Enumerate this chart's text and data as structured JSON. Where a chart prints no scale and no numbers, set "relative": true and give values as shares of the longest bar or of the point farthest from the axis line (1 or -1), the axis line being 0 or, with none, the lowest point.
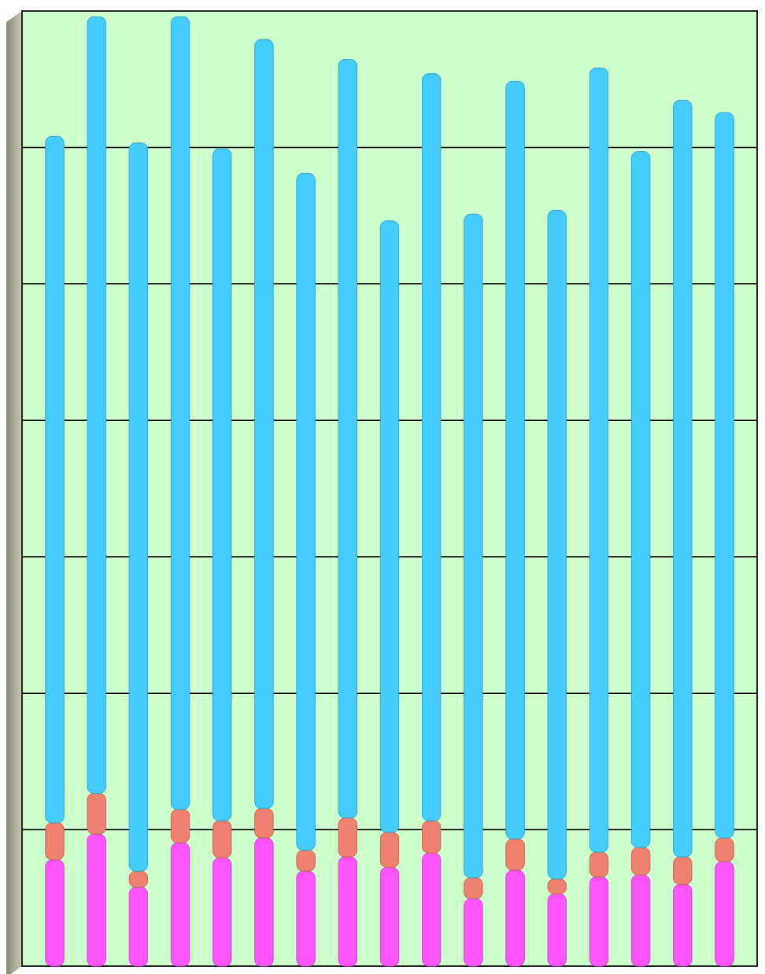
{
  "chart_data": {
    "type": "bar",
    "relative": true,
    "stacked": true,
    "grid": "y",
    "categories": [
      null,
      null,
      null,
      null,
      null,
      null,
      null,
      null,
      null,
      null,
      null,
      null,
      null,
      null,
      null,
      null,
      null
    ],
    "series": [
      {
        "color": "#ff55ff",
        "values": [
          0.112,
          0.139,
          0.083,
          0.13,
          0.114,
          0.135,
          0.1,
          0.115,
          0.104,
          0.119,
          0.071,
          0.101,
          0.076,
          0.094,
          0.096,
          0.086,
          0.11
        ]
      },
      {
        "color": "#f08070",
        "values": [
          0.039,
          0.043,
          0.017,
          0.035,
          0.039,
          0.031,
          0.022,
          0.041,
          0.037,
          0.034,
          0.022,
          0.033,
          0.016,
          0.026,
          0.029,
          0.029,
          0.025
        ]
      },
      {
        "color": "#44ccff",
        "values": [
          0.723,
          0.818,
          0.767,
          0.835,
          0.708,
          0.81,
          0.713,
          0.799,
          0.644,
          0.787,
          0.699,
          0.798,
          0.704,
          0.826,
          0.733,
          0.797,
          0.764
        ]
      }
    ]
  }
}
